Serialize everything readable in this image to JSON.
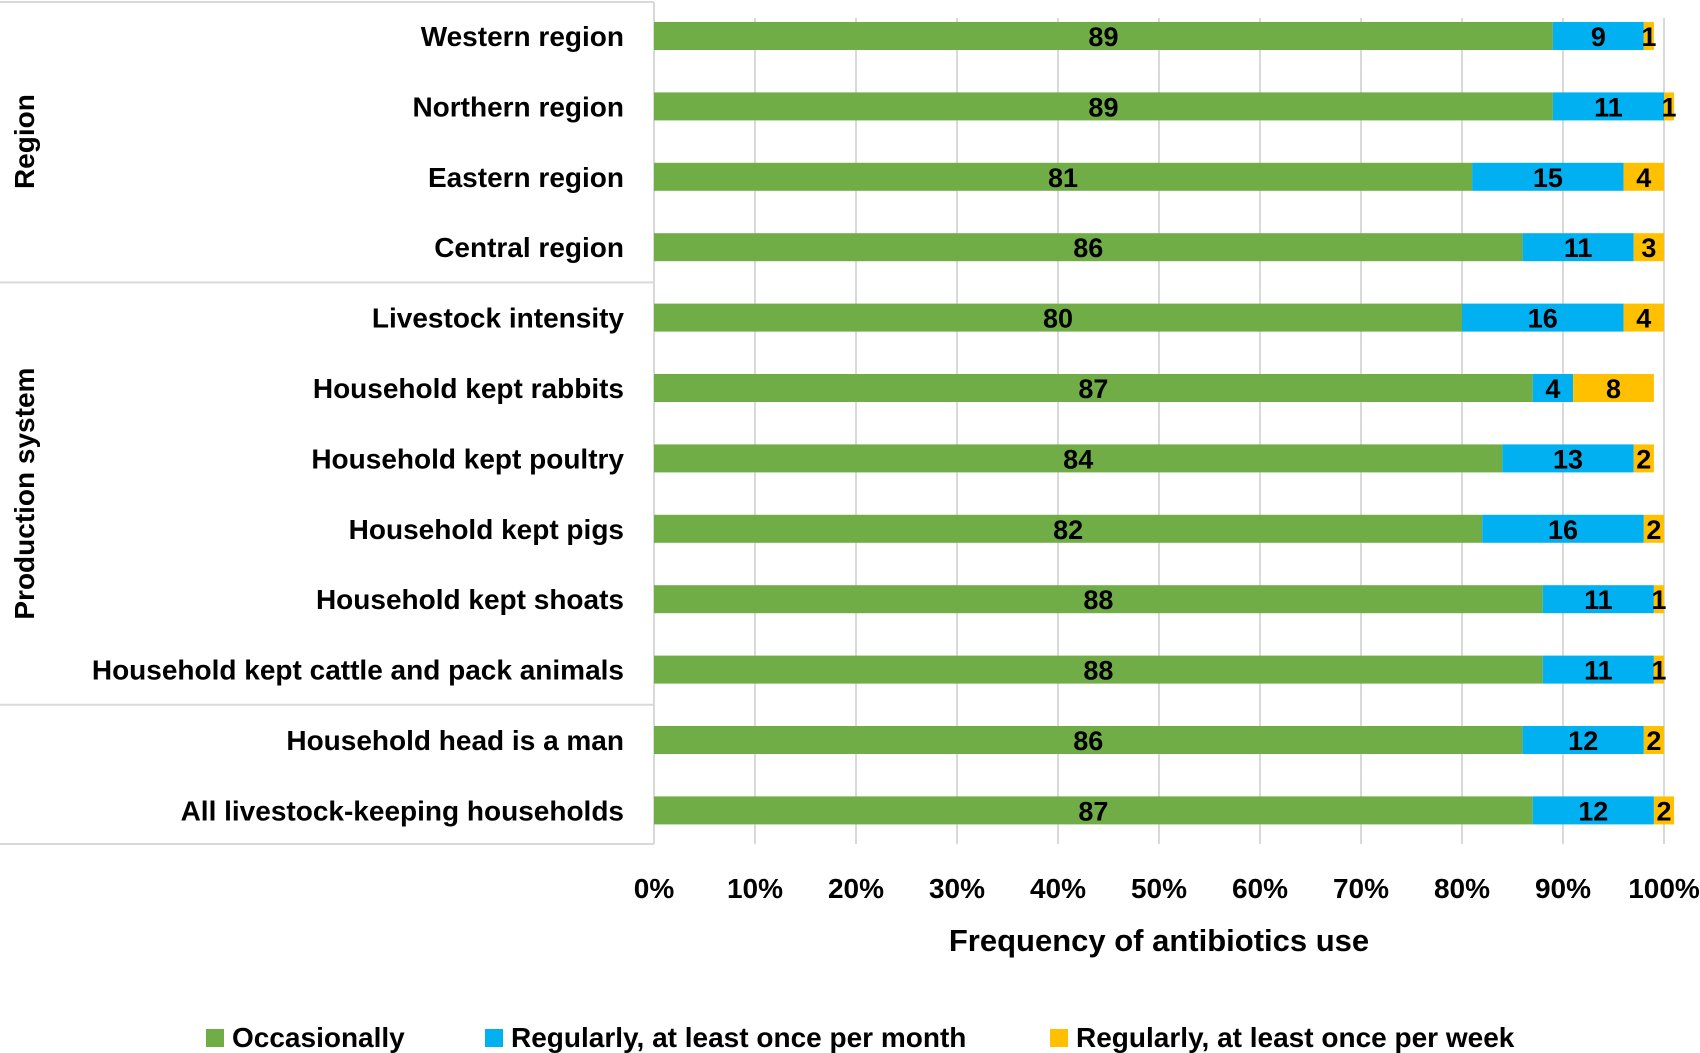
{
  "chart_data": {
    "type": "bar",
    "orientation": "horizontal",
    "stacked": "percent",
    "xlabel": "Frequency of antibiotics use",
    "xlim": [
      0,
      100
    ],
    "x_ticks": [
      "0%",
      "10%",
      "20%",
      "30%",
      "40%",
      "50%",
      "60%",
      "70%",
      "80%",
      "90%",
      "100%"
    ],
    "grid": true,
    "legend_position": "bottom",
    "categories": [
      "Western region",
      "Northern region",
      "Eastern region",
      "Central region",
      "Livestock intensity",
      "Household kept rabbits",
      "Household kept poultry",
      "Household kept pigs",
      "Household kept shoats",
      "Household kept cattle and pack animals",
      "Household head is a man",
      "All livestock-keeping households"
    ],
    "groups": [
      {
        "label": "Region",
        "categories": [
          "Western region",
          "Northern region",
          "Eastern region",
          "Central region"
        ]
      },
      {
        "label": "Production system",
        "categories": [
          "Livestock intensity",
          "Household kept rabbits",
          "Household kept poultry",
          "Household kept pigs",
          "Household kept shoats",
          "Household kept cattle and pack animals"
        ]
      },
      {
        "label": "",
        "categories": [
          "Household head is a man",
          "All livestock-keeping households"
        ]
      }
    ],
    "series": [
      {
        "name": "Occasionally",
        "color": "#70ad47",
        "values": [
          89,
          89,
          81,
          86,
          80,
          87,
          84,
          82,
          88,
          88,
          86,
          87
        ]
      },
      {
        "name": "Regularly, at least once per month",
        "color": "#00b0f0",
        "values": [
          9,
          11,
          15,
          11,
          16,
          4,
          13,
          16,
          11,
          11,
          12,
          12
        ]
      },
      {
        "name": "Regularly, at least once per week",
        "color": "#ffc000",
        "values": [
          1,
          1,
          4,
          3,
          4,
          8,
          2,
          2,
          1,
          1,
          2,
          2
        ]
      }
    ]
  }
}
